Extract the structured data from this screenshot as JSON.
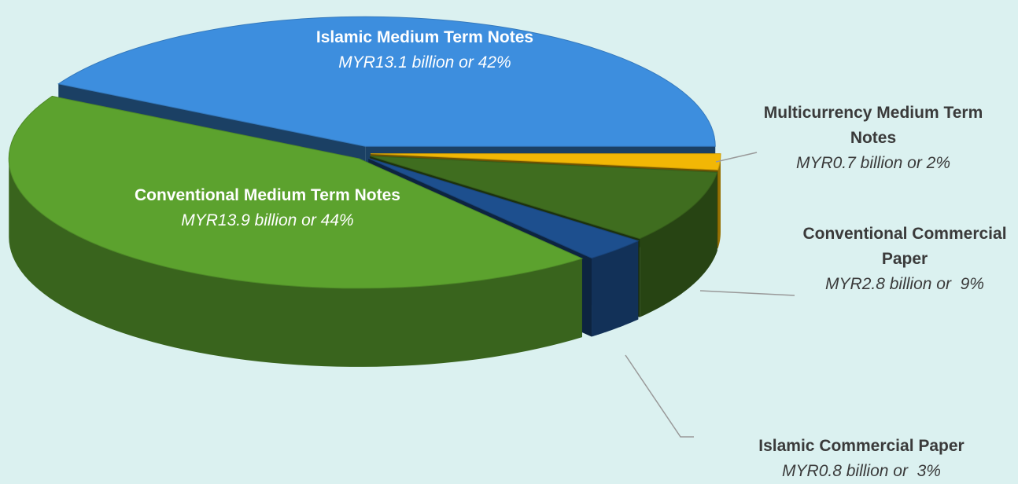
{
  "chart_data": {
    "type": "pie",
    "categories": [
      "Islamic Medium Term Notes",
      "Multicurrency Medium Term Notes",
      "Conventional Commercial Paper",
      "Islamic Commercial Paper",
      "Conventional Medium Term Notes"
    ],
    "values": [
      42,
      2,
      9,
      3,
      44
    ],
    "value_labels": [
      "MYR13.1 billion or 42%",
      "MYR0.7 billion or 2%",
      "MYR2.8 billion or  9%",
      "MYR0.8 billion or  3%",
      "MYR13.9 billion or 44%"
    ],
    "colors": [
      "#3d8ede",
      "#f2b705",
      "#3f6d1f",
      "#1d4f8e",
      "#5ca22e"
    ]
  }
}
